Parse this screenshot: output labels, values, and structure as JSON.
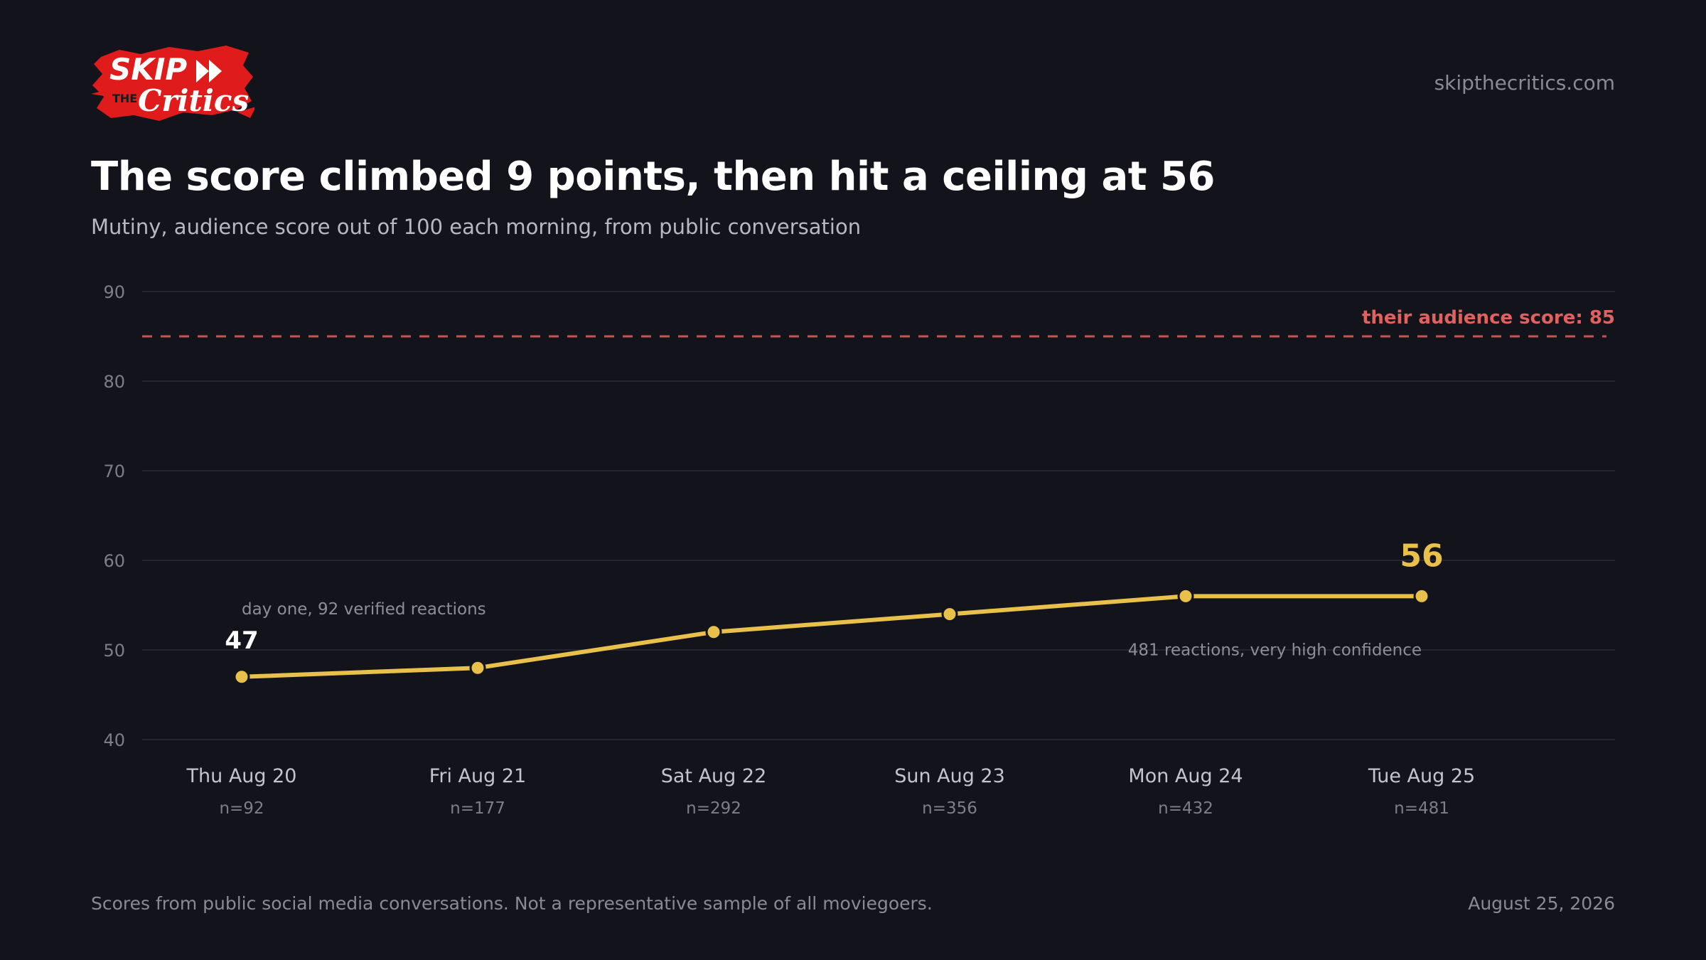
{
  "logo": {
    "word1": "SKIP",
    "word2": "THE",
    "word3": "Critics",
    "color": "#e01b1b"
  },
  "header": {
    "site_url": "skipthecritics.com",
    "title": "The score climbed 9 points, then hit a ceiling at 56",
    "subtitle": "Mutiny, audience score out of 100 each morning, from public conversation"
  },
  "chart_data": {
    "type": "line",
    "categories": [
      "Thu Aug 20",
      "Fri Aug 21",
      "Sat Aug 22",
      "Sun Aug 23",
      "Mon Aug 24",
      "Tue Aug 25"
    ],
    "sample_sizes": [
      "n=92",
      "n=177",
      "n=292",
      "n=356",
      "n=432",
      "n=481"
    ],
    "series": [
      {
        "values": [
          47,
          48,
          52,
          54,
          56,
          56
        ],
        "color": "#e8c04a"
      }
    ],
    "ylim": [
      40,
      90
    ],
    "yticks": [
      40,
      50,
      60,
      70,
      80,
      90
    ],
    "grid": true,
    "reference_line": {
      "value": 85,
      "label": "their audience score: 85",
      "color": "#e0625e"
    },
    "annotations": {
      "first_label": "47",
      "first_note": "day one, 92 verified reactions",
      "last_label": "56",
      "last_note": "481 reactions, very high confidence"
    }
  },
  "footer": {
    "note": "Scores from public social media conversations. Not a representative sample of all moviegoers.",
    "date": "August 25, 2026"
  }
}
